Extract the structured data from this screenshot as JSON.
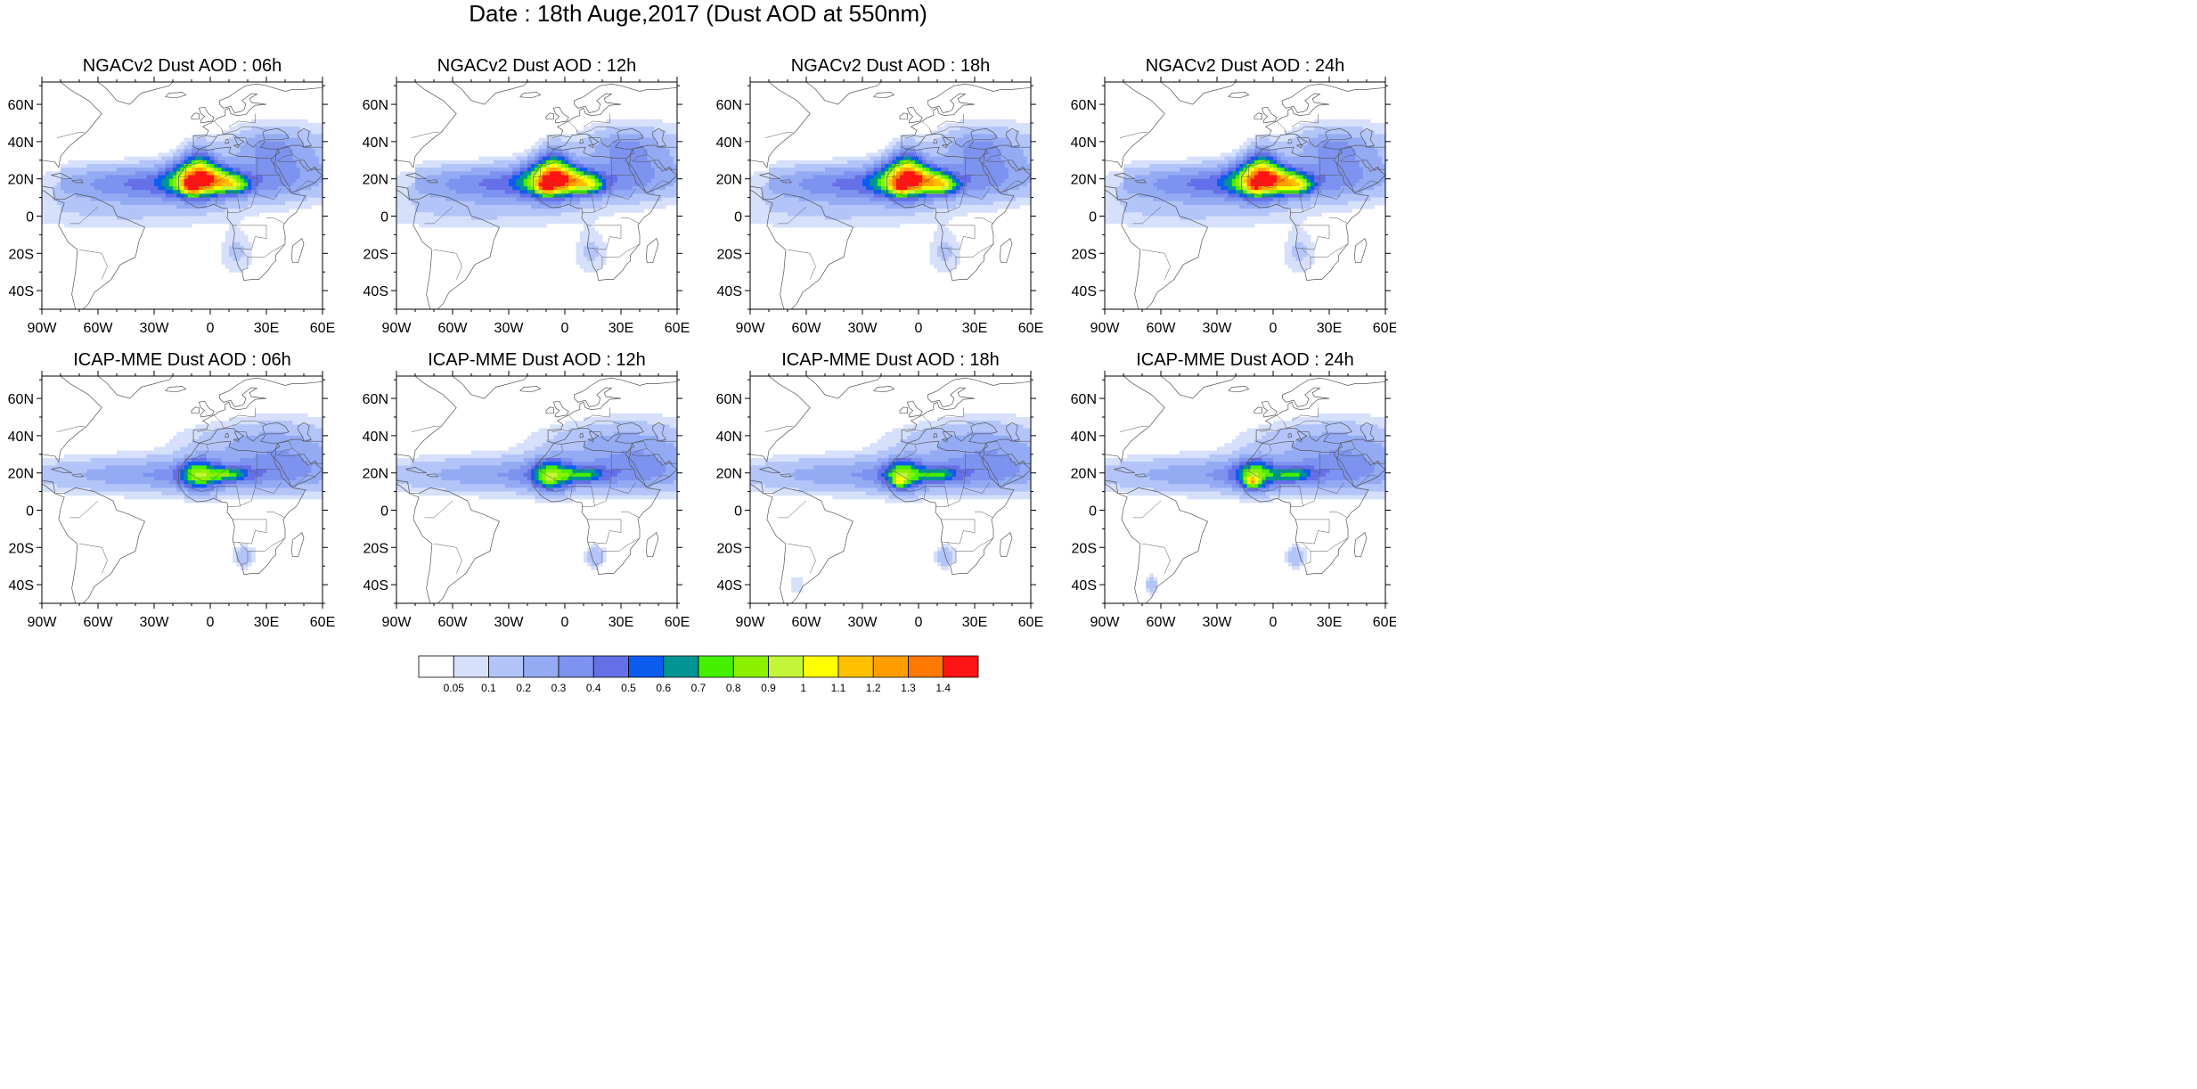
{
  "title": "Date : 18th Auge,2017 (Dust AOD at 550nm)",
  "lon_ticks": [
    "90W",
    "60W",
    "30W",
    "0",
    "30E",
    "60E"
  ],
  "lat_ticks": [
    "60N",
    "40N",
    "20N",
    "0",
    "20S",
    "40S"
  ],
  "panels": [
    {
      "title": "NGACv2 Dust AOD : 06h",
      "model": "ngac",
      "lead_hours": 6
    },
    {
      "title": "NGACv2 Dust AOD : 12h",
      "model": "ngac",
      "lead_hours": 12
    },
    {
      "title": "NGACv2 Dust AOD : 18h",
      "model": "ngac",
      "lead_hours": 18
    },
    {
      "title": "NGACv2 Dust AOD : 24h",
      "model": "ngac",
      "lead_hours": 24
    },
    {
      "title": "ICAP-MME Dust AOD : 06h",
      "model": "icap",
      "lead_hours": 6
    },
    {
      "title": "ICAP-MME Dust AOD : 12h",
      "model": "icap",
      "lead_hours": 12
    },
    {
      "title": "ICAP-MME Dust AOD : 18h",
      "model": "icap",
      "lead_hours": 18
    },
    {
      "title": "ICAP-MME Dust AOD : 24h",
      "model": "icap",
      "lead_hours": 24
    }
  ],
  "colorbar": {
    "labels": [
      "0.05",
      "0.1",
      "0.2",
      "0.3",
      "0.4",
      "0.5",
      "0.6",
      "0.7",
      "0.8",
      "0.9",
      "1",
      "1.1",
      "1.2",
      "1.3",
      "1.4"
    ],
    "colors": [
      "#ffffff",
      "#d6e0fb",
      "#b3c4f8",
      "#94abf4",
      "#7d93ef",
      "#6570e8",
      "#0d5cf0",
      "#009494",
      "#45f000",
      "#8cf000",
      "#c3f538",
      "#ffff00",
      "#ffc000",
      "#ff9e00",
      "#ff7800",
      "#ff1414"
    ]
  }
}
